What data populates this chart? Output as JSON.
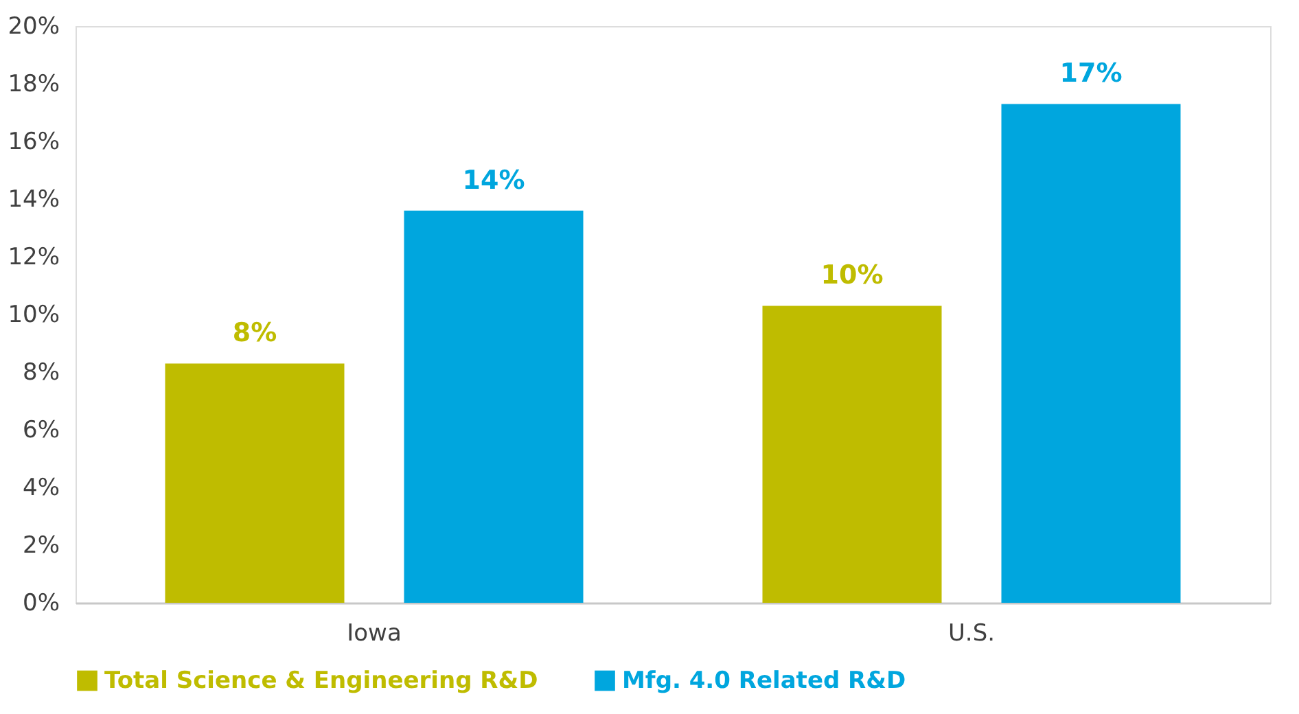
{
  "chart_data": {
    "type": "bar",
    "categories": [
      "Iowa",
      "U.S."
    ],
    "series": [
      {
        "name": "Total Science & Engineering R&D",
        "color": "#bfbc00",
        "values": [
          8.3,
          10.3
        ],
        "value_labels": [
          "8%",
          "10%"
        ]
      },
      {
        "name": "Mfg. 4.0 Related R&D",
        "color": "#00a6de",
        "values": [
          13.6,
          17.3
        ],
        "value_labels": [
          "14%",
          "17%"
        ]
      }
    ],
    "ylim": [
      0,
      20
    ],
    "yticks": [
      {
        "value": 0,
        "label": "0%"
      },
      {
        "value": 2,
        "label": "2%"
      },
      {
        "value": 4,
        "label": "4%"
      },
      {
        "value": 6,
        "label": "6%"
      },
      {
        "value": 8,
        "label": "8%"
      },
      {
        "value": 10,
        "label": "10%"
      },
      {
        "value": 12,
        "label": "12%"
      },
      {
        "value": 14,
        "label": "14%"
      },
      {
        "value": 16,
        "label": "16%"
      },
      {
        "value": 18,
        "label": "18%"
      },
      {
        "value": 20,
        "label": "20%"
      }
    ],
    "grid": false,
    "legend": "bottom"
  }
}
